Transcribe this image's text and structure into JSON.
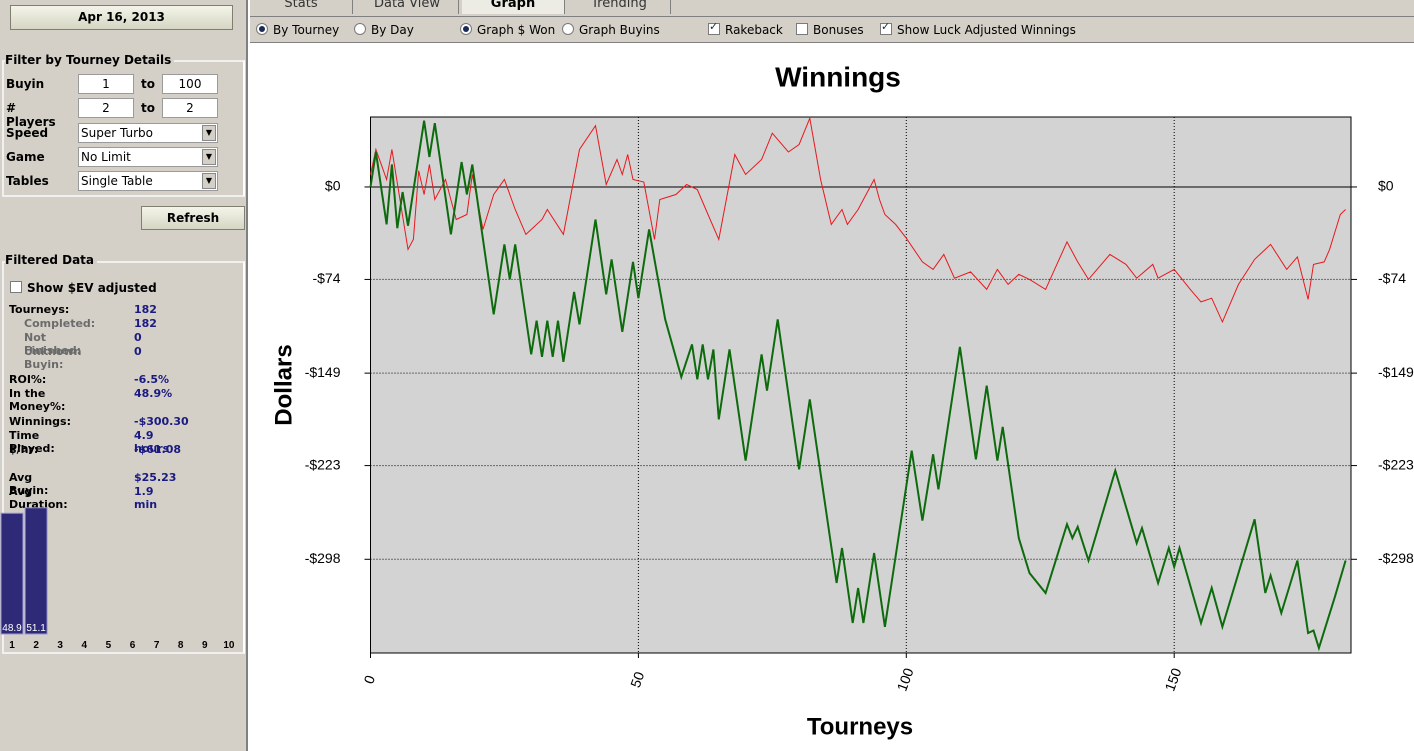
{
  "sidebar": {
    "date": "Apr 16, 2013",
    "filter_title": "Filter by Tourney Details",
    "filters": [
      {
        "label": "Buyin",
        "from": "1",
        "to_label": "to",
        "to": "100"
      },
      {
        "label": "# Players",
        "from": "2",
        "to_label": "to",
        "to": "2"
      }
    ],
    "selects": [
      {
        "label": "Speed",
        "value": "Super Turbo"
      },
      {
        "label": "Game",
        "value": "No Limit"
      },
      {
        "label": "Tables",
        "value": "Single Table"
      }
    ],
    "refresh": "Refresh",
    "filtered_title": "Filtered Data",
    "ev_checkbox": {
      "label": "Show $EV adjusted",
      "checked": false
    },
    "stats": [
      {
        "label": "Tourneys:",
        "value": "182",
        "sub": false
      },
      {
        "label": "Completed:",
        "value": "182",
        "sub": true
      },
      {
        "label": "Not Finished:",
        "value": "0",
        "sub": true
      },
      {
        "label": "Unknown Buyin:",
        "value": "0",
        "sub": true
      },
      {
        "label": "ROI%:",
        "value": "-6.5%",
        "sub": false,
        "gap": true
      },
      {
        "label": "In the Money%:",
        "value": "48.9%",
        "sub": false
      },
      {
        "label": "Winnings:",
        "value": "-$300.30",
        "sub": false,
        "gap": true
      },
      {
        "label": "Time Played:",
        "value": "4.9 hours",
        "sub": false
      },
      {
        "label": "$/hr:",
        "value": "-$61.08",
        "sub": false
      },
      {
        "label": "Avg Buyin:",
        "value": "$25.23",
        "sub": false,
        "gap": true
      },
      {
        "label": "Avg Duration:",
        "value": "1.9 min",
        "sub": false
      }
    ],
    "mini_chart": {
      "type": "bar",
      "categories": [
        "1",
        "2",
        "3",
        "4",
        "5",
        "6",
        "7",
        "8",
        "9",
        "10"
      ],
      "values": [
        48.9,
        51.1,
        null,
        null,
        null,
        null,
        null,
        null,
        null,
        null
      ],
      "color": "#2e2a78"
    }
  },
  "tabs": [
    {
      "label": "Stats",
      "selected": false
    },
    {
      "label": "Data View",
      "selected": false
    },
    {
      "label": "Graph",
      "selected": true
    },
    {
      "label": "Trending",
      "selected": false
    }
  ],
  "toolbar": [
    {
      "kind": "radio",
      "label": "By Tourney",
      "checked": true
    },
    {
      "kind": "radio",
      "label": "By Day",
      "checked": false
    },
    {
      "kind": "radio",
      "label": "Graph $ Won",
      "checked": true
    },
    {
      "kind": "radio",
      "label": "Graph Buyins",
      "checked": false
    },
    {
      "kind": "checkbox",
      "label": "Rakeback",
      "checked": true
    },
    {
      "kind": "checkbox",
      "label": "Bonuses",
      "checked": false
    },
    {
      "kind": "checkbox",
      "label": "Show Luck Adjusted Winnings",
      "checked": true
    }
  ],
  "chart_data": {
    "type": "line",
    "title": "Winnings",
    "xlabel": "Tourneys",
    "ylabel": "Dollars",
    "xlim": [
      0,
      183
    ],
    "xticks": [
      0,
      50,
      100,
      150
    ],
    "ylim": [
      -373,
      56
    ],
    "yticks": [
      {
        "value": 0,
        "label": "$0"
      },
      {
        "value": -74,
        "label": "-$74"
      },
      {
        "value": -149,
        "label": "-$149"
      },
      {
        "value": -223,
        "label": "-$223"
      },
      {
        "value": -298,
        "label": "-$298"
      }
    ],
    "grid": true,
    "series": [
      {
        "color": "#e8191e",
        "x": [
          0,
          1,
          3,
          4,
          7,
          8,
          9,
          10,
          11,
          12,
          14,
          16,
          18,
          19,
          21,
          23,
          25,
          27,
          29,
          32,
          33,
          36,
          39,
          42,
          44,
          46,
          47,
          48,
          49,
          51,
          53,
          54,
          57,
          59,
          61,
          63,
          65,
          68,
          70,
          73,
          75,
          78,
          80,
          82,
          84,
          86,
          88,
          89,
          91,
          94,
          95,
          96,
          98,
          100,
          103,
          105,
          107,
          109,
          112,
          115,
          117,
          119,
          121,
          123,
          126,
          130,
          132,
          134,
          138,
          141,
          143,
          146,
          147,
          150,
          153,
          155,
          157,
          159,
          162,
          165,
          168,
          171,
          173,
          175,
          176,
          178,
          179,
          181,
          182
        ],
        "values": [
          10,
          30,
          6,
          30,
          -50,
          -42,
          13,
          -6,
          18,
          -10,
          6,
          -26,
          -22,
          10,
          -34,
          -6,
          6,
          -18,
          -38,
          -26,
          -18,
          -38,
          30,
          49,
          2,
          22,
          10,
          26,
          6,
          4,
          -42,
          -10,
          -6,
          2,
          -2,
          -22,
          -42,
          26,
          10,
          22,
          43,
          28,
          34,
          55,
          6,
          -30,
          -18,
          -30,
          -18,
          6,
          -10,
          -22,
          -30,
          -41,
          -60,
          -66,
          -54,
          -73,
          -68,
          -82,
          -66,
          -78,
          -70,
          -74,
          -82,
          -44,
          -60,
          -74,
          -54,
          -62,
          -73,
          -62,
          -73,
          -66,
          -82,
          -92,
          -89,
          -108,
          -78,
          -58,
          -46,
          -66,
          -56,
          -90,
          -62,
          -60,
          -50,
          -22,
          -18
        ]
      },
      {
        "color": "#0d6b0d",
        "x": [
          0,
          1,
          3,
          4,
          5,
          6,
          7,
          10,
          11,
          12,
          15,
          17,
          18,
          19,
          23,
          25,
          26,
          27,
          30,
          31,
          32,
          33,
          34,
          35,
          36,
          38,
          39,
          42,
          44,
          45,
          47,
          49,
          50,
          52,
          55,
          58,
          60,
          61,
          62,
          63,
          64,
          65,
          67,
          70,
          73,
          74,
          76,
          80,
          82,
          87,
          88,
          90,
          91,
          92,
          94,
          96,
          101,
          103,
          105,
          106,
          110,
          113,
          115,
          117,
          118,
          121,
          123,
          126,
          130,
          131,
          132,
          134,
          139,
          143,
          144,
          147,
          149,
          150,
          151,
          155,
          157,
          159,
          165,
          167,
          168,
          170,
          173,
          175,
          176,
          177,
          180,
          182
        ],
        "values": [
          0,
          28,
          -30,
          18,
          -33,
          -4,
          -31,
          53,
          24,
          51,
          -38,
          20,
          -6,
          18,
          -102,
          -46,
          -74,
          -46,
          -134,
          -107,
          -136,
          -107,
          -136,
          -107,
          -140,
          -84,
          -110,
          -26,
          -86,
          -58,
          -116,
          -60,
          -89,
          -34,
          -106,
          -152,
          -126,
          -154,
          -126,
          -154,
          -130,
          -186,
          -130,
          -219,
          -134,
          -163,
          -106,
          -226,
          -170,
          -317,
          -289,
          -349,
          -321,
          -349,
          -293,
          -352,
          -211,
          -267,
          -214,
          -242,
          -128,
          -218,
          -159,
          -219,
          -192,
          -281,
          -309,
          -325,
          -270,
          -281,
          -272,
          -299,
          -227,
          -285,
          -273,
          -317,
          -289,
          -304,
          -289,
          -349,
          -321,
          -352,
          -266,
          -325,
          -311,
          -341,
          -299,
          -357,
          -355,
          -369,
          -328,
          -299
        ]
      }
    ]
  }
}
